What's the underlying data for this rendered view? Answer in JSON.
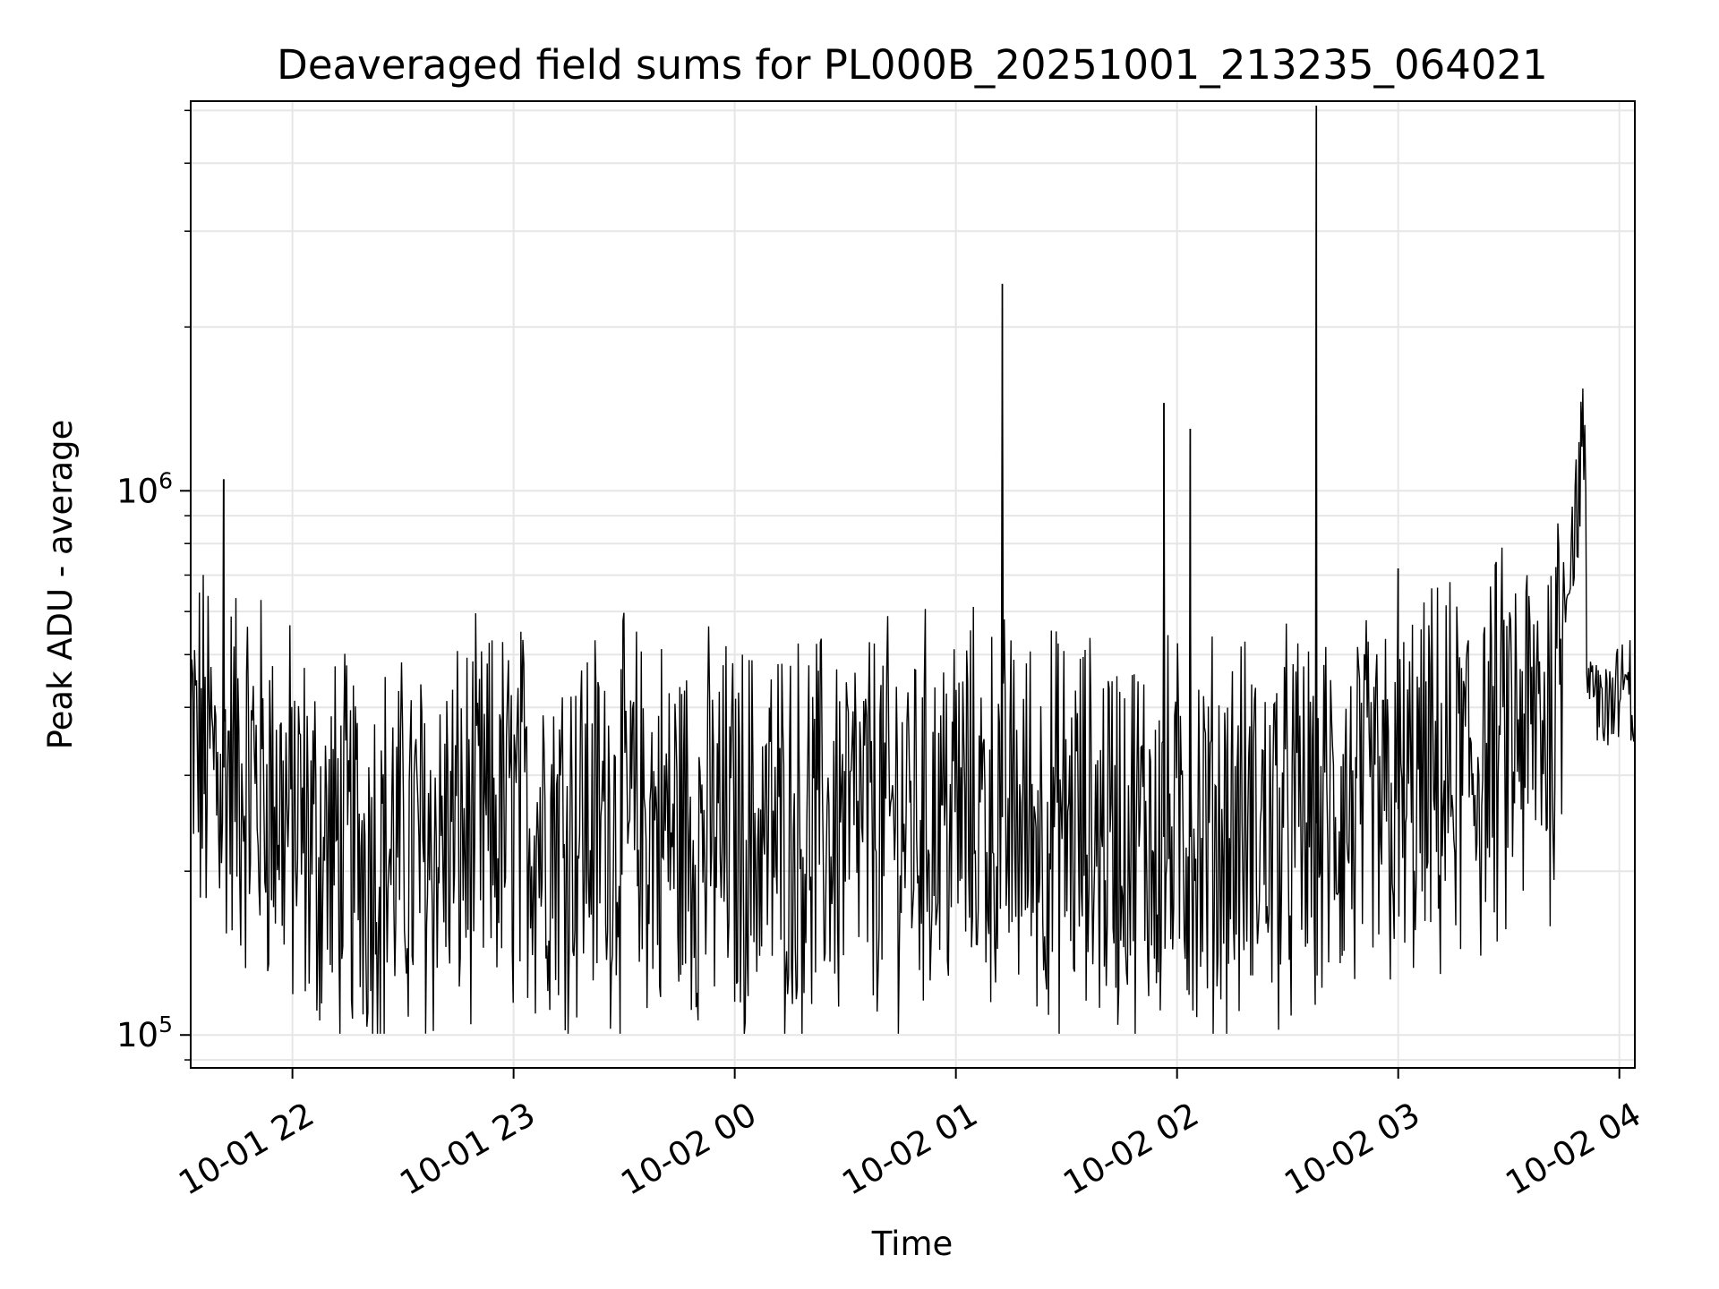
{
  "chart_data": {
    "type": "line",
    "title": "Deaveraged field sums for PL000B_20251001_213235_064021",
    "xlabel": "Time",
    "ylabel": "Peak ADU - average",
    "yscale": "log",
    "ylim": [
      87000,
      5200000
    ],
    "xlim_hours_from_2025_10_01_21_00": [
      0.54,
      7.07
    ],
    "grid": true,
    "x_ticks": [
      {
        "hour": 1,
        "label": "10-01 22"
      },
      {
        "hour": 2,
        "label": "10-01 23"
      },
      {
        "hour": 3,
        "label": "10-02 00"
      },
      {
        "hour": 4,
        "label": "10-02 01"
      },
      {
        "hour": 5,
        "label": "10-02 02"
      },
      {
        "hour": 6,
        "label": "10-02 03"
      },
      {
        "hour": 7,
        "label": "10-02 04"
      }
    ],
    "y_ticks": [
      {
        "value": 100000,
        "base": "10",
        "exp": "5"
      },
      {
        "value": 1000000,
        "base": "10",
        "exp": "6"
      }
    ],
    "series": [
      {
        "name": "Peak ADU - average",
        "color": "#000000",
        "baseline_points": [
          {
            "hour": 0.54,
            "value": 330000
          },
          {
            "hour": 0.85,
            "value": 290000
          },
          {
            "hour": 1.1,
            "value": 220000
          },
          {
            "hour": 1.5,
            "value": 215000
          },
          {
            "hour": 2.0,
            "value": 250000
          },
          {
            "hour": 2.5,
            "value": 245000
          },
          {
            "hour": 3.0,
            "value": 230000
          },
          {
            "hour": 3.5,
            "value": 240000
          },
          {
            "hour": 4.0,
            "value": 260000
          },
          {
            "hour": 4.5,
            "value": 240000
          },
          {
            "hour": 5.0,
            "value": 230000
          },
          {
            "hour": 5.5,
            "value": 240000
          },
          {
            "hour": 6.0,
            "value": 260000
          },
          {
            "hour": 6.3,
            "value": 300000
          },
          {
            "hour": 6.6,
            "value": 360000
          },
          {
            "hour": 6.7,
            "value": 390000
          },
          {
            "hour": 6.75,
            "value": 650000
          },
          {
            "hour": 6.82,
            "value": 1000000
          },
          {
            "hour": 6.84,
            "value": 1250000
          },
          {
            "hour": 6.855,
            "value": 430000
          },
          {
            "hour": 7.07,
            "value": 420000
          }
        ],
        "spikes": [
          {
            "hour": 0.69,
            "value": 1050000
          },
          {
            "hour": 4.21,
            "value": 2400000
          },
          {
            "hour": 4.94,
            "value": 1450000
          },
          {
            "hour": 5.06,
            "value": 1300000
          },
          {
            "hour": 5.63,
            "value": 5100000
          },
          {
            "hour": 6.0,
            "value": 720000
          }
        ]
      }
    ]
  }
}
